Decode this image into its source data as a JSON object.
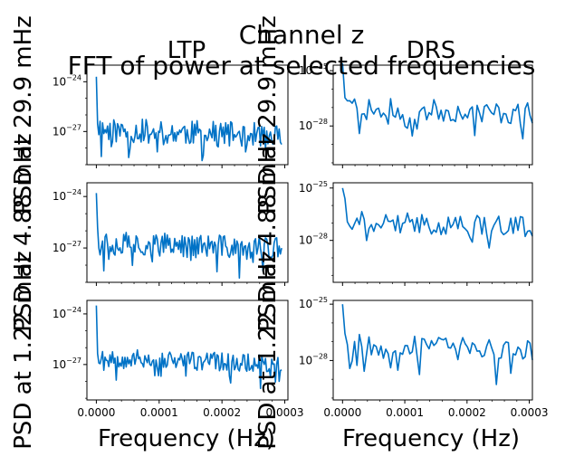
{
  "figure": {
    "suptitle_line1": "Channel z",
    "suptitle_line2": "FFT of power at selected frequencies"
  },
  "chart_data": {
    "type": "line",
    "layout": "3x2 grid of subplots, shared x axis per column, log y axis",
    "series_color": "#0072c6",
    "columns": [
      {
        "title": "LTP",
        "xlabel": "Frequency (Hz)",
        "xlim": [
          -1.5e-05,
          0.000305
        ],
        "xticks": [
          0,
          0.0001,
          0.0002,
          0.0003
        ],
        "xtick_labels": [
          "0.0000",
          "0.0001",
          "0.0002",
          "0.0003"
        ]
      },
      {
        "title": "DRS",
        "xlabel": "Frequency (Hz)",
        "xlim": [
          -1.5e-05,
          0.000305
        ],
        "xticks": [
          0,
          0.0001,
          0.0002,
          0.0003
        ],
        "xtick_labels": [
          "0.0000",
          "0.0001",
          "0.0002",
          "0.0003"
        ]
      }
    ],
    "rows": [
      {
        "ylabel": "PSD at 29.9 mHz"
      },
      {
        "ylabel": "PSD at 4.88 mHz"
      },
      {
        "ylabel": "PSD at 1.22 mHz"
      }
    ],
    "panels": [
      {
        "row": 0,
        "col": 0,
        "yscale": "log",
        "ylim_exp": [
          -29.0,
          -23.0
        ],
        "yticks_exp": [
          -27,
          -24
        ],
        "x_max": 0.000295,
        "n": 150,
        "first_exp": -23.7,
        "base_exp": -26.9,
        "decay": 8e-08,
        "noise_exp": 0.75,
        "seed": 11
      },
      {
        "row": 0,
        "col": 1,
        "yscale": "log",
        "ylim_exp": [
          -30.1,
          -24.7
        ],
        "yticks_exp": [
          -28,
          -25
        ],
        "x_max": 0.000305,
        "n": 80,
        "first_exp": -24.6,
        "base_exp": -27.0,
        "decay": 4.8e-06,
        "noise_exp": 0.6,
        "seed": 23
      },
      {
        "row": 1,
        "col": 0,
        "yscale": "log",
        "ylim_exp": [
          -29.0,
          -23.2
        ],
        "yticks_exp": [
          -27,
          -24
        ],
        "x_max": 0.000295,
        "n": 150,
        "first_exp": -23.8,
        "base_exp": -26.7,
        "decay": 4.5e-06,
        "noise_exp": 0.7,
        "seed": 37
      },
      {
        "row": 1,
        "col": 1,
        "yscale": "log",
        "ylim_exp": [
          -30.4,
          -24.7
        ],
        "yticks_exp": [
          -28,
          -25
        ],
        "x_max": 0.000305,
        "n": 80,
        "first_exp": -25.0,
        "base_exp": -26.9,
        "decay": 5.5e-06,
        "noise_exp": 0.6,
        "seed": 41
      },
      {
        "row": 2,
        "col": 0,
        "yscale": "log",
        "ylim_exp": [
          -29.1,
          -23.2
        ],
        "yticks_exp": [
          -27,
          -24
        ],
        "x_max": 0.000295,
        "n": 150,
        "first_exp": -23.5,
        "base_exp": -26.6,
        "decay": 4.8e-06,
        "noise_exp": 0.55,
        "seed": 53
      },
      {
        "row": 2,
        "col": 1,
        "yscale": "log",
        "ylim_exp": [
          -30.1,
          -24.8
        ],
        "yticks_exp": [
          -28,
          -25
        ],
        "x_max": 0.000305,
        "n": 80,
        "first_exp": -25.0,
        "base_exp": -27.1,
        "decay": 5.5e-06,
        "noise_exp": 0.55,
        "seed": 67
      }
    ]
  }
}
